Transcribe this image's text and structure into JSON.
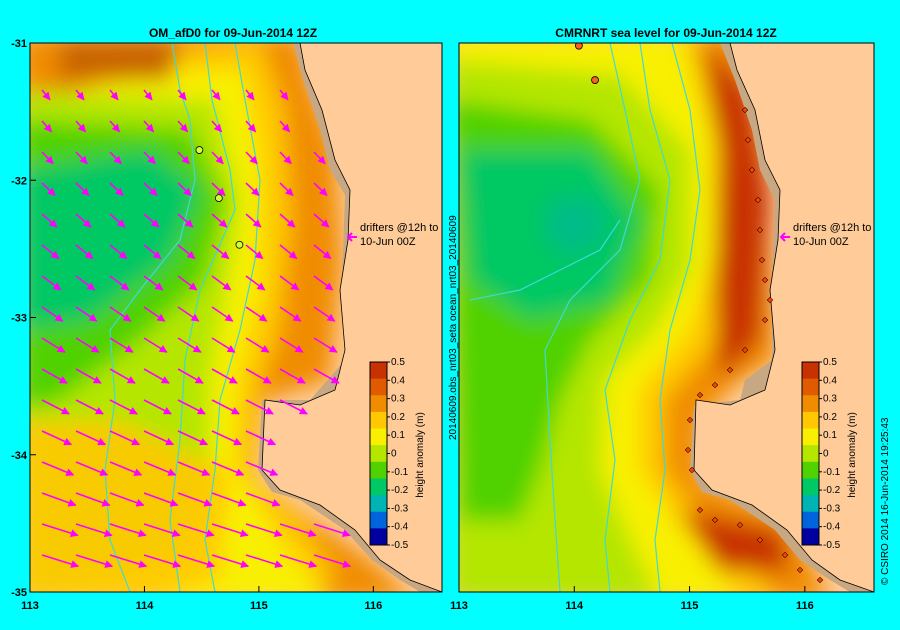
{
  "chart_data": [
    {
      "type": "heatmap",
      "title": "OM_afD0  for 09-Jun-2014 12Z",
      "xlim": [
        113,
        116.6
      ],
      "ylim": [
        -35,
        -31
      ],
      "x_ticks": [
        113,
        114,
        115,
        116
      ],
      "y_ticks": [
        -31,
        -32,
        -33,
        -34,
        -35
      ],
      "x_tick_labels": [
        "113",
        "114",
        "115",
        "116"
      ],
      "y_tick_labels": [
        "-31",
        "-32",
        "-33",
        "-34",
        "-35"
      ],
      "annotation": [
        "drifters @12h to",
        "10-Jun 00Z"
      ],
      "drifters": [
        {
          "lon": 114.48,
          "lat": -31.78
        },
        {
          "lon": 114.65,
          "lat": -32.13
        },
        {
          "lon": 114.83,
          "lat": -32.47
        }
      ]
    },
    {
      "type": "heatmap",
      "title": "CMRNRT sea level  for 09-Jun-2014 12Z",
      "xlim": [
        113,
        116.6
      ],
      "ylim": [
        -35,
        -31
      ],
      "x_ticks": [
        113,
        114,
        115,
        116
      ],
      "x_tick_labels": [
        "113",
        "114",
        "115",
        "116"
      ],
      "annotation": [
        "drifters @12h to",
        "10-Jun 00Z"
      ],
      "side_label": "20140609.obs_nrt03_seta         ocean_nrt03_20140609",
      "drifters": [
        {
          "lon": 114.04,
          "lat": -31.02
        },
        {
          "lon": 114.18,
          "lat": -31.27
        }
      ]
    }
  ],
  "colorbar": {
    "label": "height anomaly (m)",
    "ticks": [
      "0.5",
      "0.4",
      "0.3",
      "0.2",
      "0.1",
      "0",
      "-0.1",
      "-0.2",
      "-0.3",
      "-0.4",
      "-0.5"
    ],
    "colors": [
      "#c83200",
      "#e05a00",
      "#f08c00",
      "#ffc800",
      "#f8f000",
      "#b4e600",
      "#50d200",
      "#00c864",
      "#00b4b4",
      "#0064dc",
      "#0000a0"
    ]
  },
  "credit": "© CSIRO 2014   16-Jun-2014 19:25:43",
  "colors": {
    "background": "#00ffff",
    "land": "#ffcc99",
    "shelf": "#c8a882",
    "arrow": "#ff00ff",
    "contour": "#40d8d8"
  }
}
